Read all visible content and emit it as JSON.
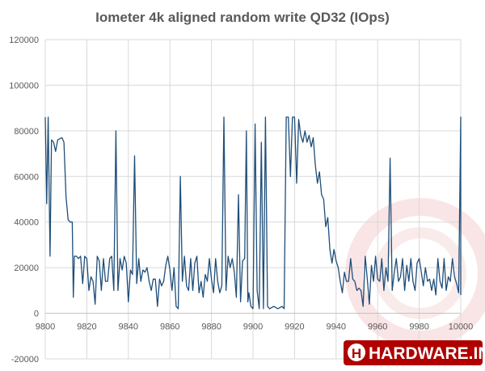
{
  "chart_data": {
    "type": "line",
    "title": "Iometer 4k aligned random write QD32 (IOps)",
    "xlabel": "",
    "ylabel": "",
    "xlim": [
      9800,
      10000
    ],
    "ylim": [
      -20000,
      120000
    ],
    "x_ticks": [
      9800,
      9820,
      9840,
      9860,
      9880,
      9900,
      9920,
      9940,
      9960,
      9980,
      10000
    ],
    "y_ticks": [
      -20000,
      0,
      20000,
      40000,
      60000,
      80000,
      100000,
      120000
    ],
    "grid": true,
    "legend": "none",
    "series": [
      {
        "color": "#1f4e79",
        "points": [
          [
            9800,
            86000
          ],
          [
            9800.7,
            48000
          ],
          [
            9801.4,
            86000
          ],
          [
            9802.3,
            25000
          ],
          [
            9803,
            76000
          ],
          [
            9804,
            75000
          ],
          [
            9805,
            71000
          ],
          [
            9806,
            76000
          ],
          [
            9808,
            77000
          ],
          [
            9809,
            75000
          ],
          [
            9810,
            51000
          ],
          [
            9811,
            41000
          ],
          [
            9812,
            40000
          ],
          [
            9813,
            40000
          ],
          [
            9813.5,
            7000
          ],
          [
            9814,
            25000
          ],
          [
            9815,
            25000
          ],
          [
            9816,
            24000
          ],
          [
            9817,
            25000
          ],
          [
            9818,
            13000
          ],
          [
            9819,
            25000
          ],
          [
            9820,
            24000
          ],
          [
            9821,
            10000
          ],
          [
            9822,
            16000
          ],
          [
            9823,
            14000
          ],
          [
            9824,
            4000
          ],
          [
            9825,
            25000
          ],
          [
            9826,
            23000
          ],
          [
            9827,
            10000
          ],
          [
            9828,
            24000
          ],
          [
            9829,
            14000
          ],
          [
            9830,
            14000
          ],
          [
            9831,
            24000
          ],
          [
            9832,
            25000
          ],
          [
            9833,
            10000
          ],
          [
            9834,
            80000
          ],
          [
            9835,
            10000
          ],
          [
            9836,
            24000
          ],
          [
            9837,
            19000
          ],
          [
            9838,
            25000
          ],
          [
            9839,
            22000
          ],
          [
            9840,
            5000
          ],
          [
            9841,
            19000
          ],
          [
            9842,
            17000
          ],
          [
            9843,
            69000
          ],
          [
            9844,
            13000
          ],
          [
            9845,
            24000
          ],
          [
            9846,
            14000
          ],
          [
            9847,
            19000
          ],
          [
            9848,
            18000
          ],
          [
            9849,
            20000
          ],
          [
            9850,
            14000
          ],
          [
            9851,
            10000
          ],
          [
            9852,
            15000
          ],
          [
            9853,
            15000
          ],
          [
            9854,
            3000
          ],
          [
            9855,
            15000
          ],
          [
            9856,
            12000
          ],
          [
            9857,
            14000
          ],
          [
            9858,
            21000
          ],
          [
            9859,
            25000
          ],
          [
            9860,
            19000
          ],
          [
            9861,
            10000
          ],
          [
            9862,
            20000
          ],
          [
            9863,
            3000
          ],
          [
            9864,
            2000
          ],
          [
            9865,
            60000
          ],
          [
            9866,
            14000
          ],
          [
            9867,
            25000
          ],
          [
            9868,
            12000
          ],
          [
            9869,
            10000
          ],
          [
            9870,
            24000
          ],
          [
            9871,
            10000
          ],
          [
            9872,
            22000
          ],
          [
            9873,
            25000
          ],
          [
            9874,
            9000
          ],
          [
            9875,
            14000
          ],
          [
            9876,
            7000
          ],
          [
            9877,
            17000
          ],
          [
            9878,
            14000
          ],
          [
            9879,
            24000
          ],
          [
            9880,
            15000
          ],
          [
            9881,
            9000
          ],
          [
            9882,
            24000
          ],
          [
            9883,
            14000
          ],
          [
            9884,
            9000
          ],
          [
            9885,
            12000
          ],
          [
            9886,
            86000
          ],
          [
            9887,
            10000
          ],
          [
            9888,
            25000
          ],
          [
            9889,
            20000
          ],
          [
            9890,
            24000
          ],
          [
            9891,
            18000
          ],
          [
            9892,
            7000
          ],
          [
            9893,
            52000
          ],
          [
            9894,
            5000
          ],
          [
            9895,
            23000
          ],
          [
            9896,
            24000
          ],
          [
            9896.8,
            80000
          ],
          [
            9897.5,
            5000
          ],
          [
            9898,
            9000
          ],
          [
            9899,
            3000
          ],
          [
            9900,
            2000
          ],
          [
            9901,
            83000
          ],
          [
            9902,
            10000
          ],
          [
            9903,
            2000
          ],
          [
            9904,
            75000
          ],
          [
            9905,
            2000
          ],
          [
            9906,
            86000
          ],
          [
            9907,
            3000
          ],
          [
            9908,
            2000
          ],
          [
            9910,
            3000
          ],
          [
            9912,
            2000
          ],
          [
            9914,
            3000
          ],
          [
            9915,
            2000
          ],
          [
            9916,
            86000
          ],
          [
            9917,
            86000
          ],
          [
            9918,
            60000
          ],
          [
            9919,
            86000
          ],
          [
            9920,
            86000
          ],
          [
            9921,
            57000
          ],
          [
            9922,
            85000
          ],
          [
            9923,
            78000
          ],
          [
            9924,
            75000
          ],
          [
            9925,
            80000
          ],
          [
            9926,
            75000
          ],
          [
            9927,
            78000
          ],
          [
            9928,
            73000
          ],
          [
            9929,
            77000
          ],
          [
            9930,
            65000
          ],
          [
            9931,
            57000
          ],
          [
            9932,
            62000
          ],
          [
            9933,
            52000
          ],
          [
            9934,
            50000
          ],
          [
            9935,
            38000
          ],
          [
            9936,
            42000
          ],
          [
            9937,
            28000
          ],
          [
            9938,
            22000
          ],
          [
            9939,
            28000
          ],
          [
            9940,
            23000
          ],
          [
            9941,
            20000
          ],
          [
            9942,
            14000
          ],
          [
            9943,
            9000
          ],
          [
            9944,
            18000
          ],
          [
            9945,
            14000
          ],
          [
            9946,
            14000
          ],
          [
            9947,
            24000
          ],
          [
            9948,
            15000
          ],
          [
            9949,
            14000
          ],
          [
            9950,
            10000
          ],
          [
            9951,
            11000
          ],
          [
            9952,
            10000
          ],
          [
            9953,
            3000
          ],
          [
            9954,
            25000
          ],
          [
            9955,
            15000
          ],
          [
            9956,
            4000
          ],
          [
            9957,
            21000
          ],
          [
            9958,
            14000
          ],
          [
            9959,
            25000
          ],
          [
            9960,
            15000
          ],
          [
            9961,
            14000
          ],
          [
            9962,
            24000
          ],
          [
            9963,
            10000
          ],
          [
            9964,
            20000
          ],
          [
            9965,
            14000
          ],
          [
            9966,
            68000
          ],
          [
            9967,
            10000
          ],
          [
            9968,
            18000
          ],
          [
            9969,
            24000
          ],
          [
            9970,
            14000
          ],
          [
            9971,
            16000
          ],
          [
            9972,
            24000
          ],
          [
            9973,
            10000
          ],
          [
            9974,
            21000
          ],
          [
            9975,
            14000
          ],
          [
            9976,
            24000
          ],
          [
            9977,
            14000
          ],
          [
            9978,
            10000
          ],
          [
            9979,
            22000
          ],
          [
            9980,
            24000
          ],
          [
            9981,
            18000
          ],
          [
            9982,
            12000
          ],
          [
            9983,
            20000
          ],
          [
            9984,
            14000
          ],
          [
            9985,
            15000
          ],
          [
            9986,
            10000
          ],
          [
            9987,
            15000
          ],
          [
            9988,
            8000
          ],
          [
            9989,
            24000
          ],
          [
            9990,
            14000
          ],
          [
            9991,
            11000
          ],
          [
            9992,
            24000
          ],
          [
            9993,
            10000
          ],
          [
            9994,
            16000
          ],
          [
            9995,
            14000
          ],
          [
            9996,
            24000
          ],
          [
            9997,
            16000
          ],
          [
            9998,
            13000
          ],
          [
            9999,
            9000
          ],
          [
            10000,
            86000
          ],
          [
            10000,
            8000
          ]
        ]
      }
    ]
  },
  "watermark": {
    "text": "HARDWARE.INFO",
    "colors": {
      "ring": "#c00000",
      "text_bg": "#b00000",
      "text": "#ffffff"
    },
    "icon": "hardware-info-logo-icon"
  }
}
